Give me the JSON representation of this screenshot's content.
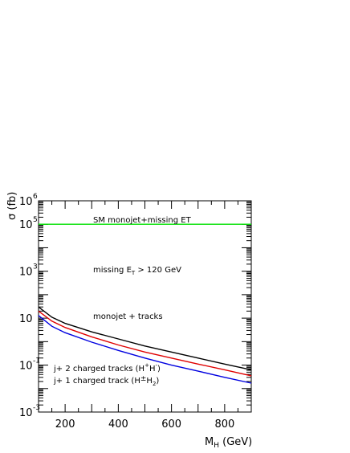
{
  "chart_data": {
    "type": "line",
    "title": "",
    "xlabel": {
      "main": "M",
      "sub": "H",
      "rest": " (GeV)"
    },
    "ylabel": "σ (fb)",
    "xlim": [
      100,
      900
    ],
    "ylim": [
      0.001,
      1000000
    ],
    "yscale": "log",
    "grid": false,
    "x_ticks": [
      {
        "value": 200,
        "label": "200"
      },
      {
        "value": 400,
        "label": "400"
      },
      {
        "value": 600,
        "label": "600"
      },
      {
        "value": 800,
        "label": "800"
      }
    ],
    "y_ticks": [
      {
        "value": 1000000,
        "base": "10",
        "exp": "6"
      },
      {
        "value": 100000,
        "base": "10",
        "exp": "5"
      },
      {
        "value": 1000,
        "base": "10",
        "exp": "3"
      },
      {
        "value": 10,
        "base": "10",
        "exp": ""
      },
      {
        "value": 0.1,
        "base": "10",
        "exp": "-1"
      },
      {
        "value": 0.001,
        "base": "10",
        "exp": "-3"
      }
    ],
    "series": [
      {
        "color": "#00e000",
        "x": [
          100,
          900
        ],
        "y": [
          100000,
          100000
        ]
      },
      {
        "color": "#000000",
        "x": [
          100,
          150,
          200,
          300,
          400,
          500,
          600,
          700,
          800,
          900
        ],
        "y": [
          30,
          11,
          6,
          2.6,
          1.3,
          0.65,
          0.36,
          0.2,
          0.11,
          0.063
        ]
      },
      {
        "color": "#e00000",
        "x": [
          100,
          150,
          200,
          300,
          400,
          500,
          600,
          700,
          800,
          900
        ],
        "y": [
          20,
          7.5,
          4,
          1.6,
          0.72,
          0.36,
          0.2,
          0.11,
          0.063,
          0.035
        ]
      },
      {
        "color": "#0000e0",
        "x": [
          100,
          150,
          200,
          300,
          400,
          500,
          600,
          700,
          800,
          900
        ],
        "y": [
          13,
          4.5,
          2.4,
          0.95,
          0.42,
          0.2,
          0.1,
          0.055,
          0.03,
          0.017
        ]
      }
    ],
    "annotations": {
      "sm": "SM monojet+missing ET",
      "missing": {
        "pre": "missing E",
        "sub": "T",
        "post": " > 120 GeV"
      },
      "monojet": "monojet + tracks",
      "two_tracks": {
        "pre": "j+ 2 charged tracks (H",
        "sup1": "+",
        "mid": "H",
        "sup2": "-",
        "post": ")"
      },
      "one_track": {
        "pre": "j+ 1 charged track (H",
        "sup": "±",
        "mid": "H",
        "sub": "2",
        "post": ")"
      }
    }
  }
}
